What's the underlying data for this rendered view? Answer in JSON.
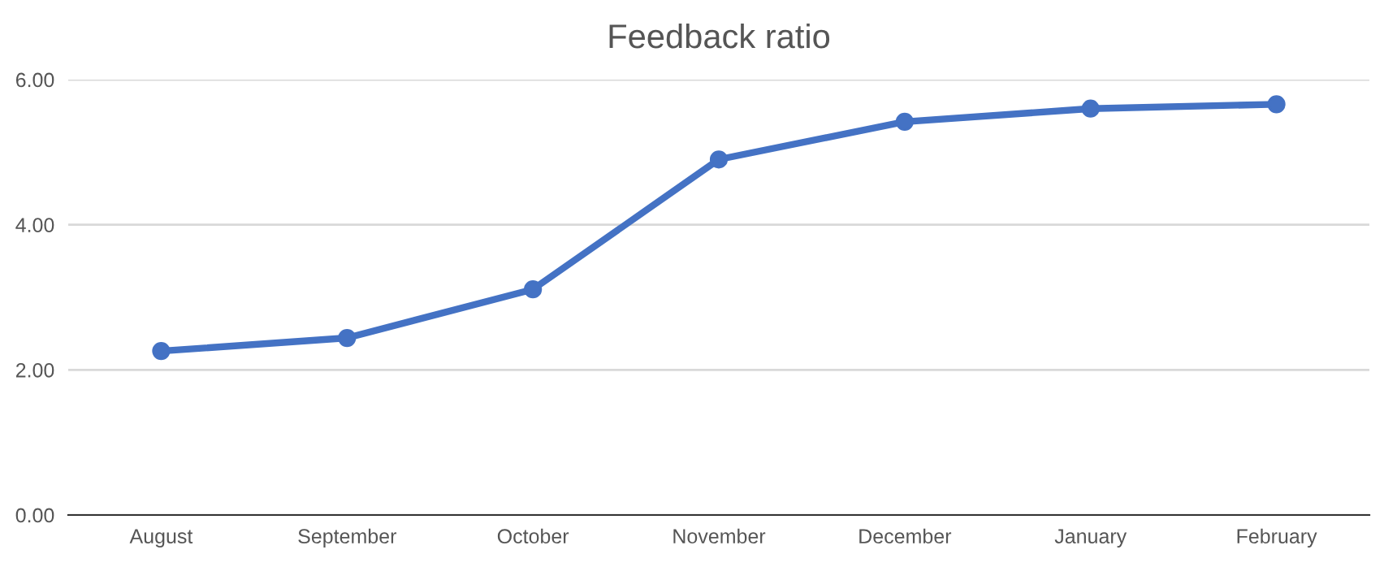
{
  "chart_data": {
    "type": "line",
    "title": "Feedback ratio",
    "categories": [
      "August",
      "September",
      "October",
      "November",
      "December",
      "January",
      "February"
    ],
    "series": [
      {
        "color": "#4472c4",
        "values": [
          2.26,
          2.44,
          3.11,
          4.9,
          5.42,
          5.6,
          5.66
        ]
      }
    ],
    "ylim": [
      0,
      6
    ],
    "yticks": [
      {
        "value": 0,
        "label": "0.00"
      },
      {
        "value": 2,
        "label": "2.00"
      },
      {
        "value": 4,
        "label": "4.00"
      },
      {
        "value": 6,
        "label": "6.00"
      }
    ],
    "grid": "y",
    "marker": "circle",
    "line_style": "solid"
  }
}
